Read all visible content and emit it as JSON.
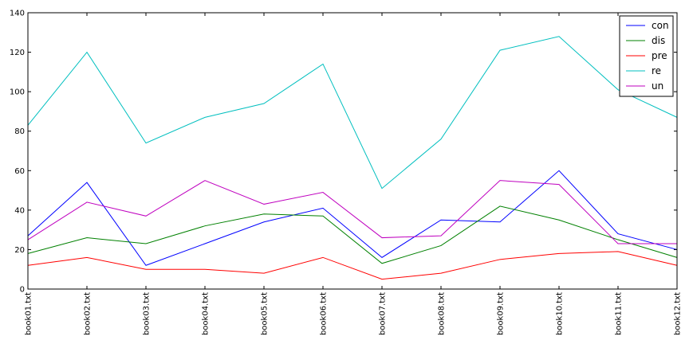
{
  "chart_data": {
    "type": "line",
    "title": "",
    "xlabel": "",
    "ylabel": "",
    "categories": [
      "book01.txt",
      "book02.txt",
      "book03.txt",
      "book04.txt",
      "book05.txt",
      "book06.txt",
      "book07.txt",
      "book08.txt",
      "book09.txt",
      "book10.txt",
      "book11.txt",
      "book12.txt"
    ],
    "ylim": [
      0,
      140
    ],
    "yticks": [
      0,
      20,
      40,
      60,
      80,
      100,
      120,
      140
    ],
    "grid": false,
    "legend_position": "top-right",
    "series": [
      {
        "name": "con",
        "color": "#0000ff",
        "values": [
          27,
          54,
          12,
          23,
          34,
          41,
          16,
          35,
          34,
          60,
          28,
          20
        ]
      },
      {
        "name": "dis",
        "color": "#008000",
        "values": [
          18,
          26,
          23,
          32,
          38,
          37,
          13,
          22,
          42,
          35,
          25,
          16
        ]
      },
      {
        "name": "pre",
        "color": "#ff0000",
        "values": [
          12,
          16,
          10,
          10,
          8,
          16,
          5,
          8,
          15,
          18,
          19,
          12
        ]
      },
      {
        "name": "re",
        "color": "#00bfbf",
        "values": [
          83,
          120,
          74,
          87,
          94,
          114,
          51,
          76,
          121,
          128,
          101,
          87
        ]
      },
      {
        "name": "un",
        "color": "#bf00bf",
        "values": [
          25,
          44,
          37,
          55,
          43,
          49,
          26,
          27,
          55,
          53,
          23,
          23
        ]
      }
    ]
  }
}
